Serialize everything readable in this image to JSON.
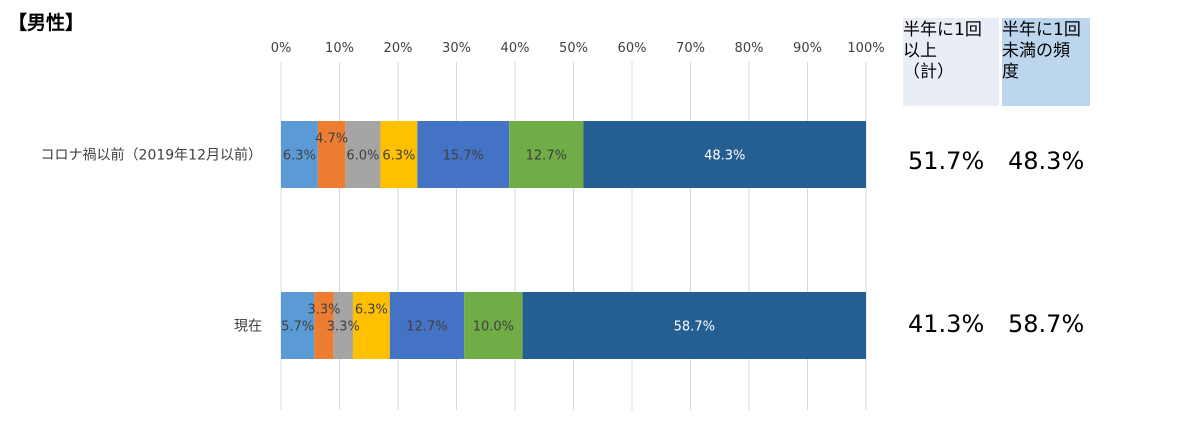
{
  "title": "【男性】",
  "chart_data": {
    "type": "bar",
    "orientation": "horizontal",
    "stacked": true,
    "xlim": [
      0,
      100
    ],
    "x_ticks": [
      "0%",
      "10%",
      "20%",
      "30%",
      "40%",
      "50%",
      "60%",
      "70%",
      "80%",
      "90%",
      "100%"
    ],
    "grid": true,
    "categories": [
      "コロナ禍以前（2019年12月以前）",
      "現在"
    ],
    "series": [
      {
        "color": "#5b9bd5",
        "values": [
          6.3,
          5.7
        ],
        "labels": [
          "6.3%",
          "5.7%"
        ]
      },
      {
        "color": "#ed7d31",
        "values": [
          4.7,
          3.3
        ],
        "labels": [
          "4.7%",
          "3.3%"
        ]
      },
      {
        "color": "#a5a5a5",
        "values": [
          6.0,
          3.3
        ],
        "labels": [
          "6.0%",
          "3.3%"
        ]
      },
      {
        "color": "#ffc000",
        "values": [
          6.3,
          6.3
        ],
        "labels": [
          "6.3%",
          "6.3%"
        ]
      },
      {
        "color": "#4472c4",
        "values": [
          15.7,
          12.7
        ],
        "labels": [
          "15.7%",
          "12.7%"
        ]
      },
      {
        "color": "#70ad47",
        "values": [
          12.7,
          10.0
        ],
        "labels": [
          "12.7%",
          "10.0%"
        ]
      },
      {
        "color": "#255e91",
        "values": [
          48.3,
          58.7
        ],
        "labels": [
          "48.3%",
          "58.7%"
        ]
      }
    ]
  },
  "summary": {
    "col1_header": "半年に1回\n以上\n（計）",
    "col2_header": "半年に1回\n未満の頻\n度",
    "rows": [
      {
        "col1": "51.7%",
        "col2": "48.3%"
      },
      {
        "col1": "41.3%",
        "col2": "58.7%"
      }
    ]
  }
}
